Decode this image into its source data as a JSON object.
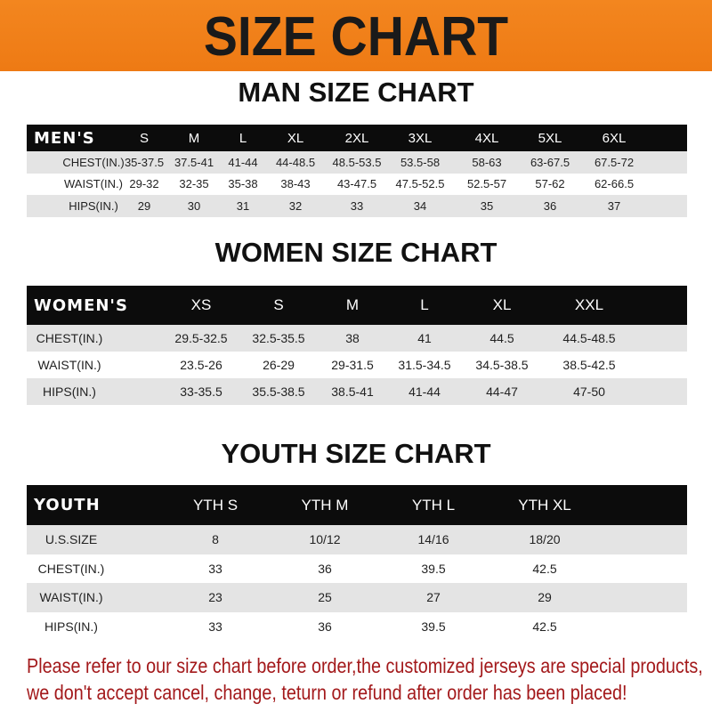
{
  "title": "SIZE CHART",
  "colors": {
    "banner": "#f07d1a",
    "header_row": "#0c0c0c",
    "notice": "#a3191b"
  },
  "men": {
    "title": "MAN SIZE CHART",
    "header": [
      "MEN'S",
      "S",
      "M",
      "L",
      "XL",
      "2XL",
      "3XL",
      "4XL",
      "5XL",
      "6XL"
    ],
    "rows": [
      [
        "CHEST(IN.)",
        "35-37.5",
        "37.5-41",
        "41-44",
        "44-48.5",
        "48.5-53.5",
        "53.5-58",
        "58-63",
        "63-67.5",
        "67.5-72"
      ],
      [
        "WAIST(IN.)",
        "29-32",
        "32-35",
        "35-38",
        "38-43",
        "43-47.5",
        "47.5-52.5",
        "52.5-57",
        "57-62",
        "62-66.5"
      ],
      [
        "HIPS(IN.)",
        "29",
        "30",
        "31",
        "32",
        "33",
        "34",
        "35",
        "36",
        "37"
      ]
    ]
  },
  "women": {
    "title": "WOMEN SIZE CHART",
    "header": [
      "WOMEN'S",
      "XS",
      "S",
      "M",
      "L",
      "XL",
      "XXL"
    ],
    "rows": [
      [
        "CHEST(IN.)",
        "29.5-32.5",
        "32.5-35.5",
        "38",
        "41",
        "44.5",
        "44.5-48.5"
      ],
      [
        "WAIST(IN.)",
        "23.5-26",
        "26-29",
        "29-31.5",
        "31.5-34.5",
        "34.5-38.5",
        "38.5-42.5"
      ],
      [
        "HIPS(IN.)",
        "33-35.5",
        "35.5-38.5",
        "38.5-41",
        "41-44",
        "44-47",
        "47-50"
      ]
    ]
  },
  "youth": {
    "title": "YOUTH SIZE CHART",
    "header": [
      "YOUTH",
      "YTH S",
      "YTH M",
      "YTH L",
      "YTH XL"
    ],
    "rows": [
      [
        "U.S.SIZE",
        "8",
        "10/12",
        "14/16",
        "18/20"
      ],
      [
        "CHEST(IN.)",
        "33",
        "36",
        "39.5",
        "42.5"
      ],
      [
        "WAIST(IN.)",
        "23",
        "25",
        "27",
        "29"
      ],
      [
        "HIPS(IN.)",
        "33",
        "36",
        "39.5",
        "42.5"
      ]
    ]
  },
  "notice": [
    "Please refer to our size chart before order,the customized jerseys are special products,",
    "we don't accept cancel, change, teturn or refund after order has been placed!"
  ]
}
